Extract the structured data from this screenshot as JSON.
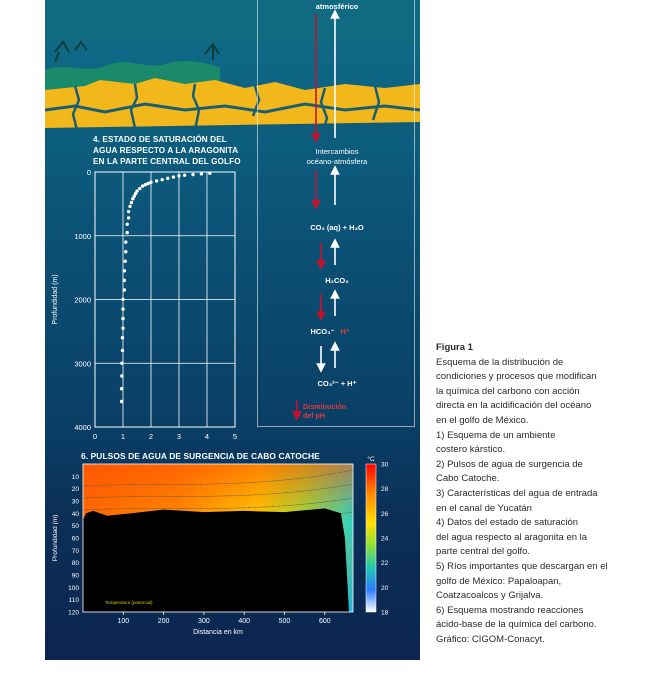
{
  "panel_4": {
    "title_lines": [
      "4. ESTADO DE SATURACIÓN DEL",
      "AGUA RESPECTO A LA ARAGONITA",
      "EN LA PARTE CENTRAL DEL GOLFO"
    ],
    "y_label": "Profundidad (m)"
  },
  "reactions": {
    "atmosferico": "atmosférico",
    "intercambio_lines": [
      "Intercambios",
      "océano-atmósfera"
    ],
    "step1": "CO₂ (aq) + H₂O",
    "step2": "H₂CO₃",
    "step3a": "HCO₃⁻",
    "step3b": "H⁺",
    "step4": "CO₃²⁻ + H⁺",
    "ph_lines": [
      "Disminución",
      "del pH"
    ]
  },
  "panel_6": {
    "title": "6. PULSOS DE AGUA DE SURGENCIA DE CABO CATOCHE",
    "y_label": "Profundidad (m)",
    "x_label": "Distancia en km",
    "colorbar_unit": "°C",
    "colorbar_ticks": [
      "30",
      "28",
      "26",
      "24",
      "22",
      "20",
      "18"
    ],
    "small_note": "Temperatura (potencial)"
  },
  "chart_data": [
    {
      "type": "scatter",
      "title": "4. ESTADO DE SATURACIÓN DEL AGUA RESPECTO A LA ARAGONITA EN LA PARTE CENTRAL DEL GOLFO",
      "xlabel": "",
      "ylabel": "Profundidad (m)",
      "xlim": [
        0,
        5
      ],
      "ylim": [
        4000,
        0
      ],
      "x_ticks": [
        "0",
        "1",
        "2",
        "3",
        "4",
        "5"
      ],
      "y_ticks": [
        "0",
        "1000",
        "2000",
        "3000",
        "4000"
      ],
      "grid": true,
      "series": [
        {
          "x": [
            4.1,
            3.8,
            3.5,
            3.2,
            3.0,
            2.8,
            2.6,
            2.4,
            2.2,
            2.0,
            1.9,
            1.8,
            1.7,
            1.6,
            1.5,
            1.45,
            1.4,
            1.35,
            1.3,
            1.25,
            1.2,
            1.2,
            1.15,
            1.15,
            1.1,
            1.1,
            1.08,
            1.05,
            1.05,
            1.05,
            1.0,
            1.0,
            1.0,
            1.0,
            0.98,
            0.98,
            0.96,
            0.96,
            0.95,
            0.95
          ],
          "y": [
            20,
            30,
            40,
            50,
            60,
            80,
            100,
            120,
            140,
            160,
            180,
            200,
            220,
            260,
            300,
            340,
            380,
            420,
            480,
            540,
            620,
            720,
            820,
            950,
            1100,
            1250,
            1400,
            1550,
            1700,
            1850,
            2000,
            2150,
            2300,
            2450,
            2600,
            2800,
            3000,
            3200,
            3400,
            3600
          ]
        }
      ]
    },
    {
      "type": "heatmap",
      "title": "6. PULSOS DE AGUA DE SURGENCIA DE CABO CATOCHE",
      "xlabel": "Distancia en km",
      "ylabel": "Profundidad (m)",
      "xlim": [
        0,
        670
      ],
      "ylim": [
        120,
        0
      ],
      "x_ticks": [
        "100",
        "200",
        "300",
        "400",
        "500",
        "600"
      ],
      "y_ticks": [
        "10",
        "20",
        "30",
        "40",
        "50",
        "60",
        "70",
        "80",
        "90",
        "100",
        "110",
        "120"
      ],
      "colorbar": {
        "label": "°C",
        "range": [
          18,
          30
        ],
        "ticks": [
          "30",
          "28",
          "26",
          "24",
          "22",
          "20",
          "18"
        ]
      },
      "approx_isotherms_deg_c": [
        28,
        26,
        24,
        22,
        20
      ]
    }
  ],
  "caption": {
    "heading": "Figura 1",
    "lines": [
      "Esquema de la distribución de",
      "condiciones y procesos que modifican",
      "la química del carbono con acción",
      "directa en la acidificación del océano",
      "en el golfo de México.",
      "1) Esquema de un ambiente",
      "costero kárstico.",
      "2) Pulsos de agua de surgencia de",
      "Cabo Catoche.",
      "3) Características del agua de entrada",
      "en el canal de Yucatán",
      "4) Datos del estado de saturación",
      "del agua respecto al aragonita en la",
      "parte central del golfo.",
      "5) Ríos importantes que descargan en el",
      "golfo de México: Papaloapan,",
      "Coatzacoalcos y Grijalva.",
      "6) Esquema mostrando reacciones",
      "ácido-base de la química del carbono.",
      "Gráfico: CIGOM-Conacyt."
    ]
  },
  "colors": {
    "ocean_top": "#0f6f8a",
    "ocean_bottom": "#0b2550",
    "reef": "#f2b71a",
    "arrow_red": "#c8102e",
    "caption_text": "#2a2a2a"
  }
}
